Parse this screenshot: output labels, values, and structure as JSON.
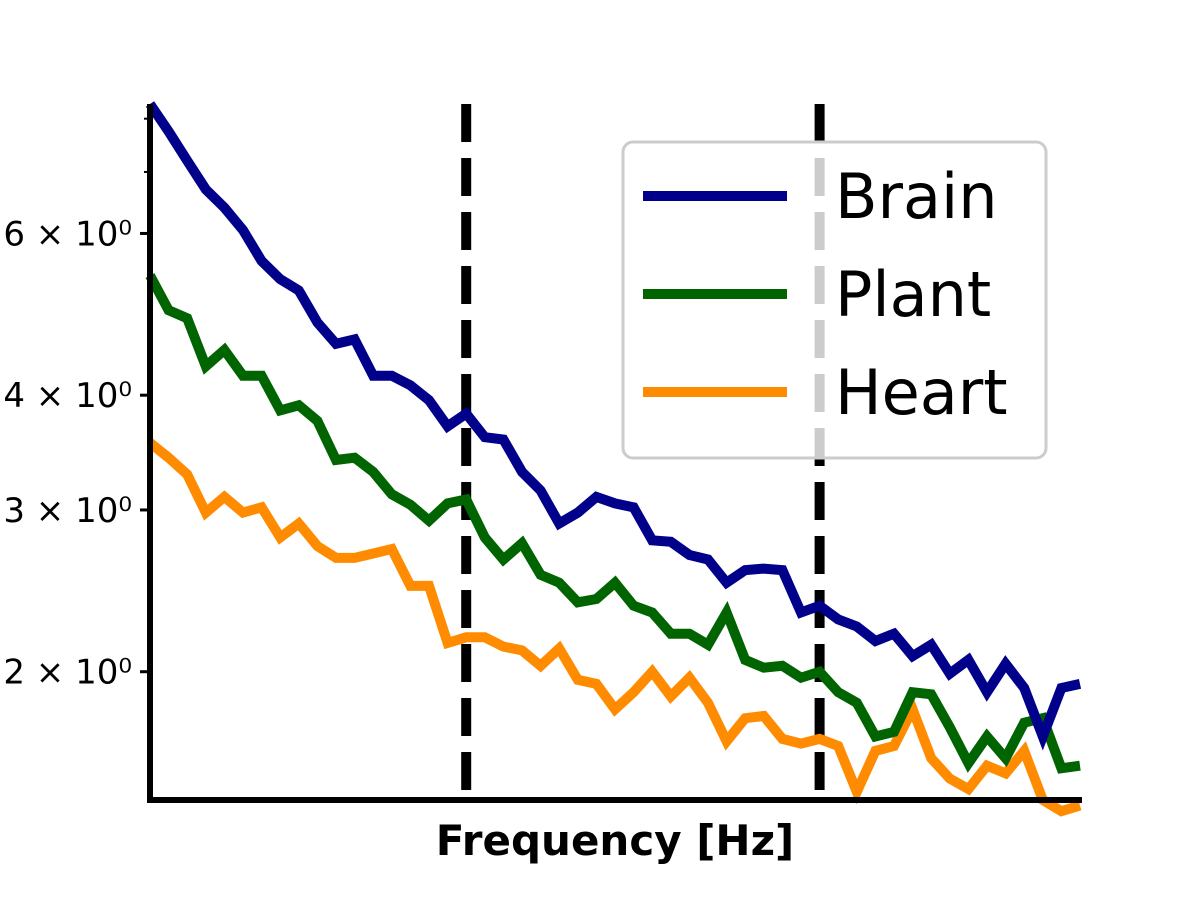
{
  "chart_data": {
    "type": "line",
    "title": "",
    "xlabel": "Frequency [Hz]",
    "ylabel": "",
    "y_scale": "log",
    "ylim": [
      1.45,
      8.3
    ],
    "y_ticks": [
      {
        "value": 2,
        "label": "2 × 10⁰"
      },
      {
        "value": 3,
        "label": "3 × 10⁰"
      },
      {
        "value": 4,
        "label": "4 × 10⁰"
      },
      {
        "value": 6,
        "label": "6 × 10⁰"
      }
    ],
    "x_tick_labels": "none",
    "vlines": [
      {
        "position_fraction": 0.34,
        "style": "dashed",
        "color": "#000000"
      },
      {
        "position_fraction": 0.72,
        "style": "dashed",
        "color": "#000000"
      }
    ],
    "spines": [
      "left",
      "bottom"
    ],
    "grid": false,
    "legend_position": "upper-right",
    "series": [
      {
        "name": "Brain",
        "color": "#00008b",
        "values": [
          8.3,
          7.75,
          7.2,
          6.7,
          6.4,
          6.05,
          5.6,
          5.35,
          5.2,
          4.8,
          4.55,
          4.6,
          4.2,
          4.2,
          4.1,
          3.95,
          3.7,
          3.82,
          3.6,
          3.58,
          3.3,
          3.15,
          2.9,
          2.98,
          3.1,
          3.05,
          3.02,
          2.78,
          2.77,
          2.68,
          2.65,
          2.5,
          2.58,
          2.59,
          2.58,
          2.32,
          2.36,
          2.28,
          2.24,
          2.16,
          2.2,
          2.08,
          2.14,
          1.99,
          2.06,
          1.9,
          2.04,
          1.92,
          1.7,
          1.92,
          1.94
        ]
      },
      {
        "name": "Plant",
        "color": "#006400",
        "values": [
          5.4,
          4.95,
          4.85,
          4.3,
          4.48,
          4.2,
          4.2,
          3.85,
          3.9,
          3.75,
          3.4,
          3.42,
          3.3,
          3.12,
          3.04,
          2.92,
          3.05,
          3.08,
          2.8,
          2.65,
          2.76,
          2.55,
          2.5,
          2.38,
          2.4,
          2.5,
          2.36,
          2.32,
          2.2,
          2.2,
          2.14,
          2.32,
          2.06,
          2.02,
          2.03,
          1.97,
          2.0,
          1.9,
          1.85,
          1.7,
          1.72,
          1.9,
          1.89,
          1.74,
          1.59,
          1.7,
          1.61,
          1.76,
          1.78,
          1.57,
          1.58
        ]
      },
      {
        "name": "Heart",
        "color": "#ff8c00",
        "values": [
          3.55,
          3.42,
          3.28,
          2.98,
          3.1,
          2.98,
          3.02,
          2.8,
          2.9,
          2.74,
          2.66,
          2.66,
          2.69,
          2.72,
          2.48,
          2.48,
          2.15,
          2.18,
          2.18,
          2.13,
          2.11,
          2.03,
          2.12,
          1.96,
          1.94,
          1.82,
          1.9,
          2.0,
          1.88,
          1.97,
          1.85,
          1.68,
          1.78,
          1.79,
          1.69,
          1.67,
          1.69,
          1.66,
          1.48,
          1.64,
          1.66,
          1.82,
          1.61,
          1.53,
          1.49,
          1.58,
          1.55,
          1.64,
          1.45,
          1.41,
          1.43
        ]
      }
    ]
  }
}
